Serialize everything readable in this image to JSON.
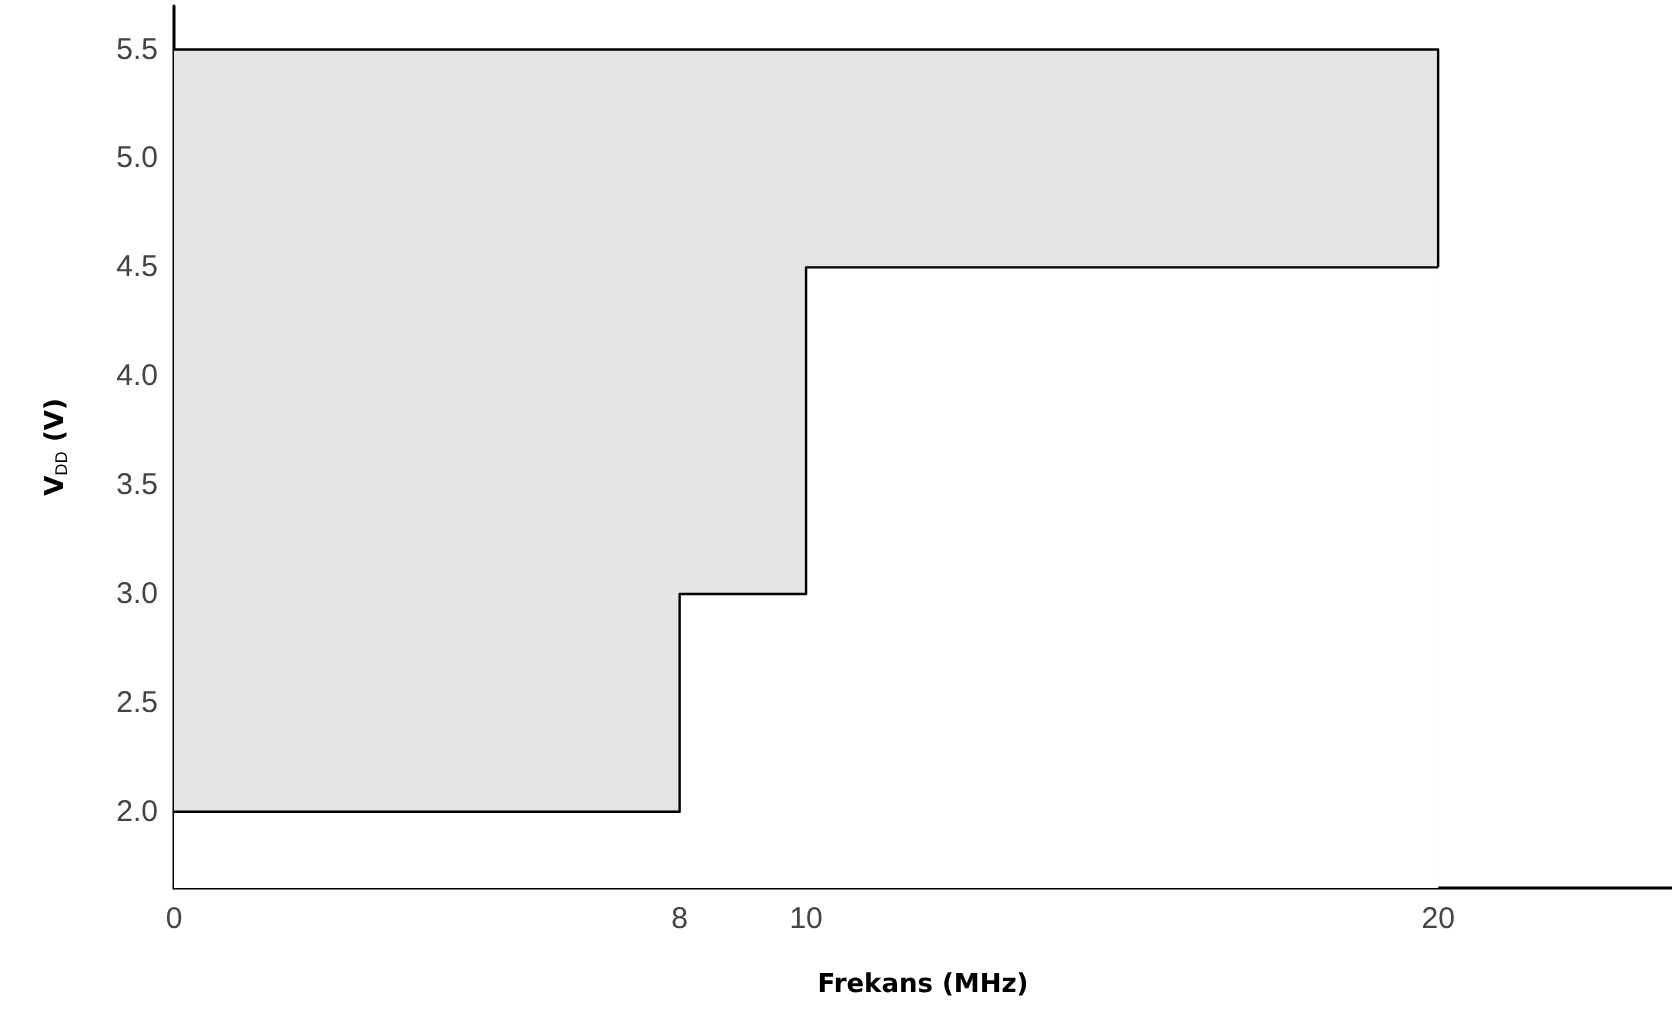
{
  "chart_data": {
    "type": "area",
    "xlabel": "Frekans (MHz)",
    "ylabel": "V$_{DD}$ (V)",
    "xlim": [
      0,
      23.7
    ],
    "xticks": [
      0,
      8,
      10,
      20
    ],
    "ylim": [
      1.65,
      5.7
    ],
    "yticks": [
      {
        "value": 2,
        "label": "2.0"
      },
      2.5,
      {
        "value": 3,
        "label": "3.0"
      },
      3.5,
      {
        "value": 4,
        "label": "4.0"
      },
      4.5,
      {
        "value": 5,
        "label": "5.0"
      },
      5.5
    ],
    "grid": false,
    "series": [
      {
        "color": "#e5e5e5",
        "x": [
          0,
          20,
          20
        ],
        "values": [
          5.5,
          5.5,
          4.5
        ]
      },
      {
        "color": "#ffffff",
        "x": [
          0,
          8,
          8,
          10,
          10,
          20
        ],
        "values": [
          2,
          2,
          3,
          3,
          4.5,
          4.5
        ]
      }
    ]
  }
}
